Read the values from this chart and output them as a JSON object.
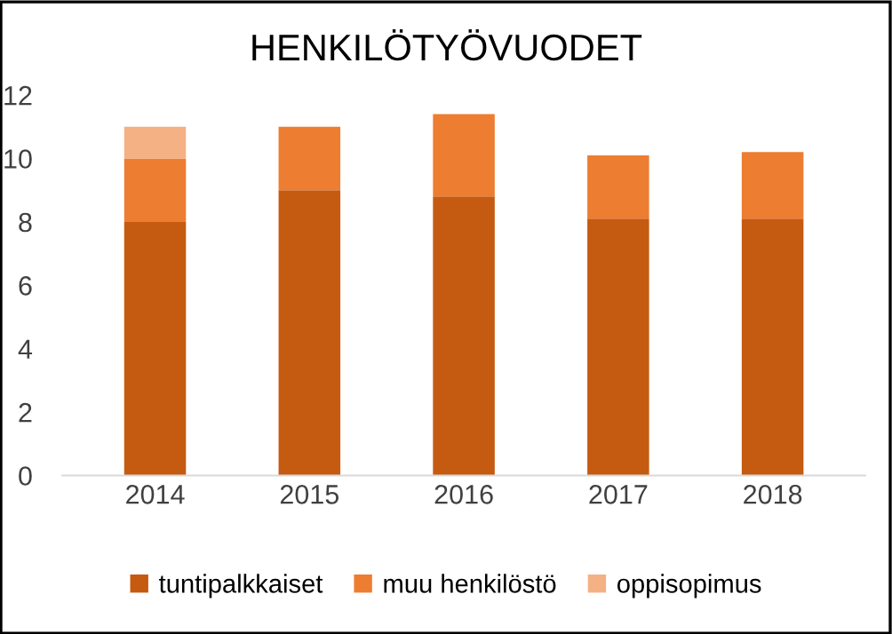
{
  "chart_data": {
    "type": "bar",
    "title": "HENKILÖTYÖVUODET",
    "stacked": true,
    "categories": [
      "2014",
      "2015",
      "2016",
      "2017",
      "2018"
    ],
    "series": [
      {
        "name": "tuntipalkkaiset",
        "color": "#c55a11",
        "values": [
          8,
          9,
          8.8,
          8.1,
          8.1
        ]
      },
      {
        "name": "muu henkilöstö",
        "color": "#ed7d31",
        "values": [
          2,
          2,
          2.6,
          2.0,
          2.1
        ]
      },
      {
        "name": "oppisopimus",
        "color": "#f4b183",
        "values": [
          1,
          null,
          null,
          null,
          null
        ]
      }
    ],
    "ylim": [
      0,
      12
    ],
    "yticks": [
      0,
      2,
      4,
      6,
      8,
      10,
      12
    ],
    "grid": false,
    "legend": "bottom"
  }
}
